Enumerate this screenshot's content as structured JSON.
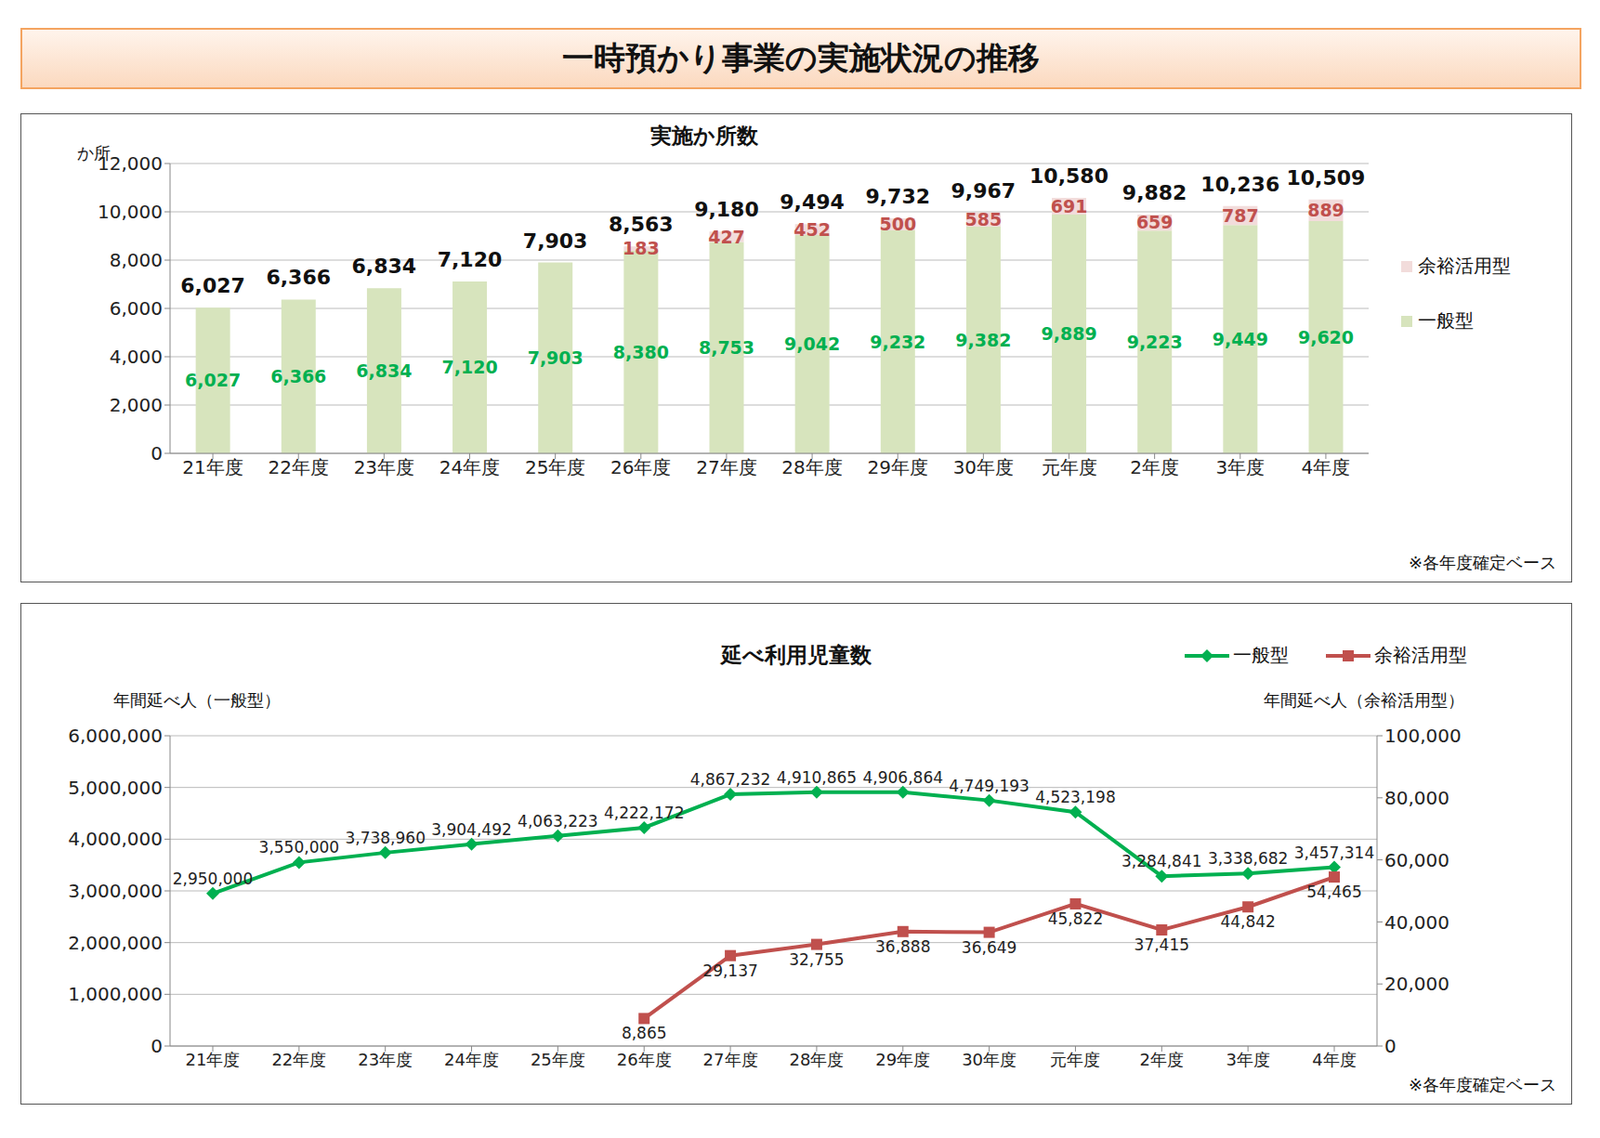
{
  "title": "一時預かり事業の実施状況の推移",
  "chart_data": [
    {
      "type": "bar",
      "title": "実施か所数",
      "y_label": "か所",
      "stacked": true,
      "grid": true,
      "legend": "right",
      "data_labels": true,
      "annotations": [
        "※各年度確定ベース"
      ],
      "categories": [
        "21年度",
        "22年度",
        "23年度",
        "24年度",
        "25年度",
        "26年度",
        "27年度",
        "28年度",
        "29年度",
        "30年度",
        "元年度",
        "2年度",
        "3年度",
        "4年度"
      ],
      "ylim": [
        0,
        12000
      ],
      "yticks": [
        0,
        {
          "value": 2000,
          "label": "2,000"
        },
        {
          "value": 4000,
          "label": "4,000"
        },
        {
          "value": 6000,
          "label": "6,000"
        },
        {
          "value": 8000,
          "label": "8,000"
        },
        {
          "value": 10000,
          "label": "10,000"
        },
        {
          "value": 12000,
          "label": "12,000"
        }
      ],
      "series": [
        {
          "name": "一般型",
          "color": "#d7e4bd",
          "values": [
            6027,
            6366,
            6834,
            7120,
            7903,
            8380,
            8753,
            9042,
            9232,
            9382,
            9889,
            9223,
            9449,
            9620
          ],
          "value_labels": [
            "6,027",
            "6,366",
            "6,834",
            "7,120",
            "7,903",
            "8,380",
            "8,753",
            "9,042",
            "9,232",
            "9,382",
            "9,889",
            "9,223",
            "9,449",
            "9,620"
          ]
        },
        {
          "name": "余裕活用型",
          "color": "#f2dcdb",
          "values": [
            null,
            null,
            null,
            null,
            null,
            183,
            427,
            452,
            500,
            585,
            691,
            659,
            787,
            889
          ],
          "value_labels": [
            null,
            null,
            null,
            null,
            null,
            "183",
            "427",
            "452",
            "500",
            "585",
            "691",
            "659",
            "787",
            "889"
          ]
        }
      ],
      "totals": {
        "values": [
          6027,
          6366,
          6834,
          7120,
          7903,
          8563,
          9180,
          9494,
          9732,
          9967,
          10580,
          9882,
          10236,
          10509
        ],
        "value_labels": [
          "6,027",
          "6,366",
          "6,834",
          "7,120",
          "7,903",
          "8,563",
          "9,180",
          "9,494",
          "9,732",
          "9,967",
          "10,580",
          "9,882",
          "10,236",
          "10,509"
        ]
      }
    },
    {
      "type": "line",
      "title": "延べ利用児童数",
      "y_label": "年間延べ人（一般型）",
      "y2_label": "年間延べ人（余裕活用型）",
      "grid": true,
      "legend": "top-right",
      "data_labels": true,
      "annotations": [
        "※各年度確定ベース"
      ],
      "categories": [
        "21年度",
        "22年度",
        "23年度",
        "24年度",
        "25年度",
        "26年度",
        "27年度",
        "28年度",
        "29年度",
        "30年度",
        "元年度",
        "2年度",
        "3年度",
        "4年度"
      ],
      "ylim": [
        0,
        6000000
      ],
      "yticks": [
        0,
        {
          "value": 1000000,
          "label": "1,000,000"
        },
        {
          "value": 2000000,
          "label": "2,000,000"
        },
        {
          "value": 3000000,
          "label": "3,000,000"
        },
        {
          "value": 4000000,
          "label": "4,000,000"
        },
        {
          "value": 5000000,
          "label": "5,000,000"
        },
        {
          "value": 6000000,
          "label": "6,000,000"
        }
      ],
      "y2lim": [
        0,
        100000
      ],
      "y2ticks": [
        0,
        {
          "value": 20000,
          "label": "20,000"
        },
        {
          "value": 40000,
          "label": "40,000"
        },
        {
          "value": 60000,
          "label": "60,000"
        },
        {
          "value": 80000,
          "label": "80,000"
        },
        {
          "value": 100000,
          "label": "100,000"
        }
      ],
      "series": [
        {
          "name": "一般型",
          "color": "#00b050",
          "marker": "diamond",
          "values": [
            2950000,
            3550000,
            3738960,
            3904492,
            4063223,
            4222172,
            4867232,
            4910865,
            4906864,
            4749193,
            4523198,
            3284841,
            3338682,
            3457314
          ],
          "value_labels": [
            "2,950,000",
            "3,550,000",
            "3,738,960",
            "3,904,492",
            "4,063,223",
            "4,222,172",
            "4,867,232",
            "4,910,865",
            "4,906,864",
            "4,749,193",
            "4,523,198",
            "3,284,841",
            "3,338,682",
            "3,457,314"
          ]
        },
        {
          "name": "余裕活用型",
          "color": "#c0504d",
          "marker": "square",
          "axis": "y2",
          "values": [
            null,
            null,
            null,
            null,
            null,
            8865,
            29137,
            32755,
            36888,
            36649,
            45822,
            37415,
            44842,
            54465
          ],
          "value_labels": [
            null,
            null,
            null,
            null,
            null,
            "8,865",
            "29,137",
            "32,755",
            "36,888",
            "36,649",
            "45,822",
            "37,415",
            "44,842",
            "54,465"
          ]
        }
      ]
    }
  ]
}
